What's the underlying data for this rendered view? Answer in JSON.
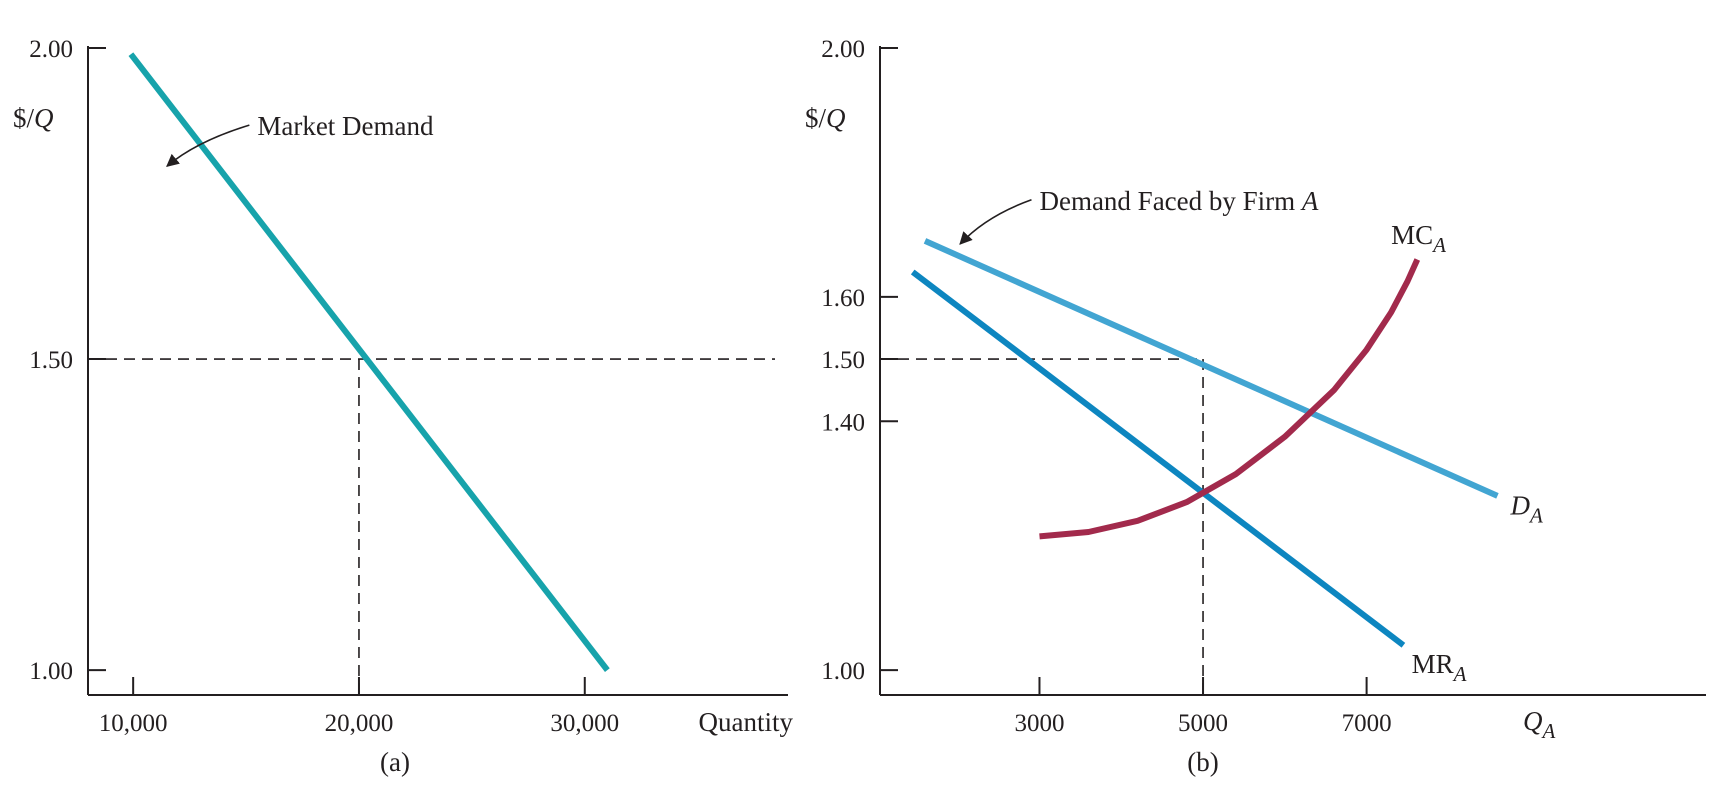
{
  "chart_data": [
    {
      "type": "line",
      "panel_label": "(a)",
      "xlabel": "Quantity",
      "ylabel": "$/Q",
      "xlim": [
        8000,
        39000
      ],
      "ylim": [
        0.96,
        2.0
      ],
      "x_ticks": [
        {
          "v": 10000,
          "label": "10,000"
        },
        {
          "v": 20000,
          "label": "20,000"
        },
        {
          "v": 30000,
          "label": "30,000"
        }
      ],
      "y_ticks": [
        {
          "v": 2.0,
          "label": "2.00"
        },
        {
          "v": 1.5,
          "label": "1.50"
        },
        {
          "v": 1.0,
          "label": "1.00"
        }
      ],
      "series": [
        {
          "name": "Market Demand",
          "color": "#17a3ab",
          "points": [
            [
              9900,
              1.99
            ],
            [
              31000,
              1.0
            ]
          ]
        }
      ],
      "guides": {
        "x": 20000,
        "y": 1.5
      },
      "annotations": [
        {
          "text": "Market Demand",
          "x": 11500,
          "y": 1.81,
          "label_x": 15500,
          "label_y": 1.86,
          "ctrl_x": 12800,
          "ctrl_y": 1.85
        }
      ]
    },
    {
      "type": "line",
      "panel_label": "(b)",
      "xlabel": "Q",
      "xlabel_sub": "A",
      "ylabel": "$/Q",
      "xlim": [
        1050,
        11150
      ],
      "ylim": [
        0.96,
        2.0
      ],
      "x_ticks": [
        {
          "v": 3000,
          "label": "3000"
        },
        {
          "v": 5000,
          "label": "5000"
        },
        {
          "v": 7000,
          "label": "7000"
        }
      ],
      "y_ticks": [
        {
          "v": 2.0,
          "label": "2.00"
        },
        {
          "v": 1.6,
          "label": "1.60"
        },
        {
          "v": 1.5,
          "label": "1.50"
        },
        {
          "v": 1.4,
          "label": "1.40"
        },
        {
          "v": 1.0,
          "label": "1.00"
        }
      ],
      "series": [
        {
          "name": "D",
          "sub": "A",
          "color": "#42a5d2",
          "points": [
            [
              1600,
              1.69
            ],
            [
              8600,
              1.28
            ]
          ],
          "label_x": 8760,
          "label_y": 1.25
        },
        {
          "name": "MR",
          "sub": "A",
          "color": "#0d86c0",
          "points": [
            [
              1450,
              1.64
            ],
            [
              7450,
              1.04
            ]
          ],
          "label_x": 7550,
          "label_y": 0.995
        },
        {
          "name": "MC",
          "sub": "A",
          "color": "#a22a4c",
          "points": [
            [
              3000,
              1.215
            ],
            [
              3600,
              1.222
            ],
            [
              4200,
              1.24
            ],
            [
              4800,
              1.27
            ],
            [
              5400,
              1.315
            ],
            [
              6000,
              1.375
            ],
            [
              6600,
              1.45
            ],
            [
              7000,
              1.515
            ],
            [
              7300,
              1.575
            ],
            [
              7500,
              1.625
            ],
            [
              7620,
              1.66
            ]
          ],
          "label_x": 7300,
          "label_y": 1.685
        }
      ],
      "guides": {
        "x": 5000,
        "y": 1.5
      },
      "annotations": [
        {
          "text": "Demand Faced by Firm ",
          "text_italic": "A",
          "x": 2030,
          "y": 1.685,
          "label_x": 3000,
          "label_y": 1.74,
          "ctrl_x": 2350,
          "ctrl_y": 1.73
        }
      ]
    }
  ]
}
